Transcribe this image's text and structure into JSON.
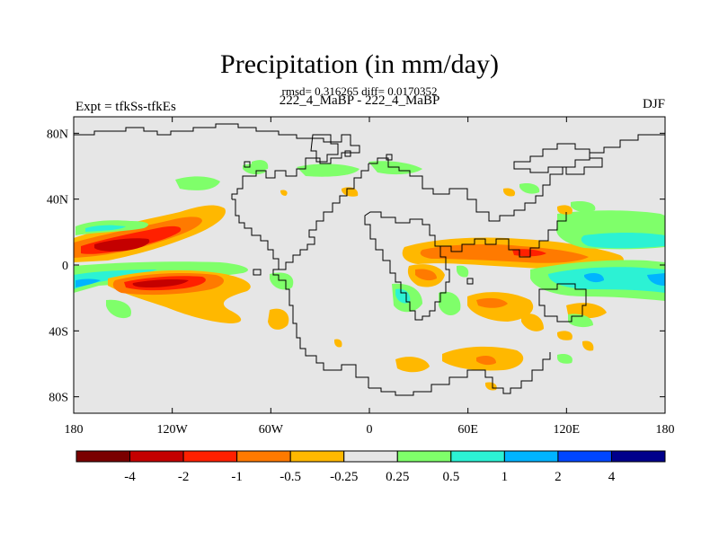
{
  "title": "Precipitation (in mm/day)",
  "stats": "rmsd= 0.316265 diff= 0.0170352",
  "subtitle": "222_4_MaBP - 222_4_MaBP",
  "experiment": "Expt = tfkSs-tfkEs",
  "season": "DJF",
  "axes": {
    "lat_ticks": [
      {
        "value": 80,
        "label": "80N"
      },
      {
        "value": 40,
        "label": "40N"
      },
      {
        "value": 0,
        "label": "0"
      },
      {
        "value": -40,
        "label": "40S"
      },
      {
        "value": -80,
        "label": "80S"
      }
    ],
    "lon_ticks": [
      {
        "value": -180,
        "label": "180"
      },
      {
        "value": -120,
        "label": "120W"
      },
      {
        "value": -60,
        "label": "60W"
      },
      {
        "value": 0,
        "label": "0"
      },
      {
        "value": 60,
        "label": "60E"
      },
      {
        "value": 120,
        "label": "120E"
      },
      {
        "value": 180,
        "label": "180"
      }
    ]
  },
  "colorbar": {
    "colors": [
      "#7a0000",
      "#c40000",
      "#ff2000",
      "#ff7a00",
      "#ffb800",
      "#e6e6e6",
      "#7fff6a",
      "#2cf2d4",
      "#00b4ff",
      "#0046ff",
      "#00008b"
    ],
    "labels": [
      "-4",
      "-2",
      "-1",
      "-0.5",
      "-0.25",
      "0.25",
      "0.5",
      "1",
      "2",
      "4"
    ]
  },
  "colors": {
    "background": "#e6e6e6",
    "coast": "#000000"
  },
  "chart_data": {
    "type": "map",
    "variable": "Precipitation difference",
    "units": "mm/day",
    "lon_range": [
      -180,
      180
    ],
    "lat_range": [
      -90,
      90
    ],
    "anomalies": [
      {
        "name": "north-pacific-dry",
        "level": "-1",
        "lon": [
          -180,
          -90
        ],
        "lat": [
          5,
          15
        ]
      },
      {
        "name": "north-pacific-core",
        "level": "-2",
        "lon": [
          -175,
          -125
        ],
        "lat": [
          8,
          14
        ]
      },
      {
        "name": "south-pacific-dry",
        "level": "-1",
        "lon": [
          -160,
          -95
        ],
        "lat": [
          -17,
          -5
        ]
      },
      {
        "name": "south-pacific-core",
        "level": "-2",
        "lon": [
          -150,
          -115
        ],
        "lat": [
          -14,
          -8
        ]
      },
      {
        "name": "equatorial-pacific-wet",
        "level": "0.5",
        "lon": [
          -180,
          -120
        ],
        "lat": [
          -12,
          -3
        ]
      },
      {
        "name": "north-pacific-wet",
        "level": "0.5",
        "lon": [
          -180,
          -140
        ],
        "lat": [
          18,
          25
        ]
      },
      {
        "name": "south-atlantic-dry",
        "level": "-0.25",
        "lon": [
          -130,
          -60
        ],
        "lat": [
          -35,
          -15
        ]
      },
      {
        "name": "africa-indian-dry",
        "level": "-0.5",
        "lon": [
          25,
          130
        ],
        "lat": [
          -5,
          15
        ]
      },
      {
        "name": "indian-ocean-wet",
        "level": "1",
        "lon": [
          100,
          180
        ],
        "lat": [
          -15,
          0
        ]
      },
      {
        "name": "western-pacific-wet",
        "level": "0.5",
        "lon": [
          115,
          165
        ],
        "lat": [
          10,
          20
        ]
      },
      {
        "name": "southern-ocean-dry",
        "level": "-0.25",
        "lon": [
          15,
          90
        ],
        "lat": [
          -62,
          -50
        ]
      },
      {
        "name": "north-atlantic-wet",
        "level": "0.25",
        "lon": [
          -40,
          0
        ],
        "lat": [
          35,
          55
        ]
      }
    ]
  }
}
